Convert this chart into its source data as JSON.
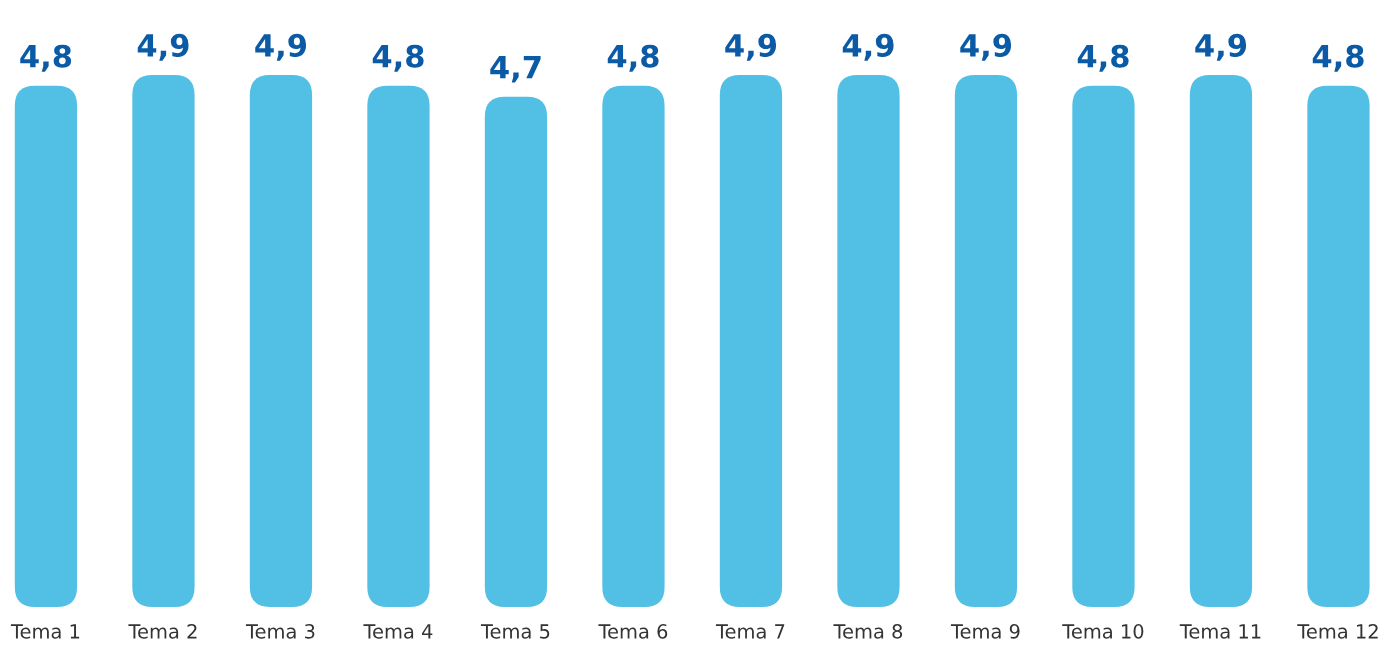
{
  "chart_data": {
    "type": "bar",
    "categories": [
      "Tema 1",
      "Tema 2",
      "Tema 3",
      "Tema 4",
      "Tema 5",
      "Tema 6",
      "Tema 7",
      "Tema 8",
      "Tema 9",
      "Tema 10",
      "Tema 11",
      "Tema 12"
    ],
    "values": [
      4.8,
      4.9,
      4.9,
      4.8,
      4.7,
      4.8,
      4.9,
      4.9,
      4.9,
      4.8,
      4.9,
      4.8
    ],
    "value_labels": [
      "4,8",
      "4,9",
      "4,9",
      "4,8",
      "4,7",
      "4,8",
      "4,9",
      "4,9",
      "4,9",
      "4,8",
      "4,9",
      "4,8"
    ],
    "tick_labels": "x",
    "color": "#52c0e5",
    "grid": false
  }
}
